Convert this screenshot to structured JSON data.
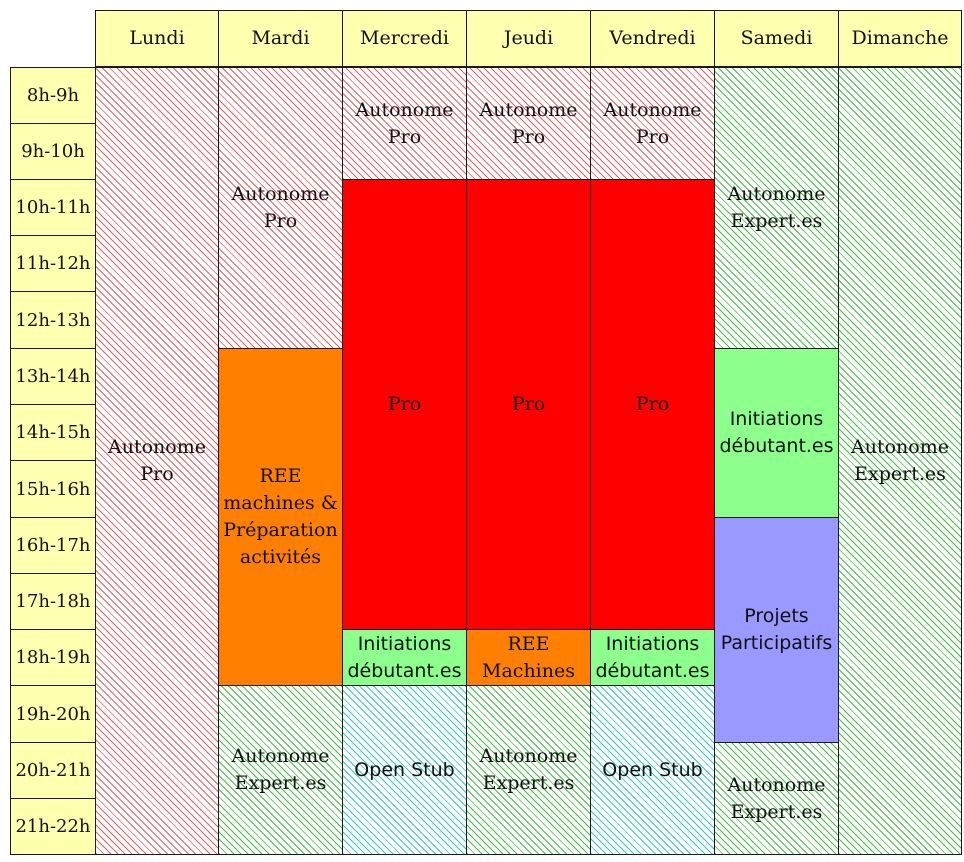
{
  "days": [
    "Lundi",
    "Mardi",
    "Mercredi",
    "Jeudi",
    "Vendredi",
    "Samedi",
    "Dimanche"
  ],
  "time_slots": [
    "8h-9h",
    "9h-10h",
    "10h-11h",
    "11h-12h",
    "12h-13h",
    "13h-14h",
    "14h-15h",
    "15h-16h",
    "16h-17h",
    "17h-18h",
    "18h-19h",
    "19h-20h",
    "20h-21h",
    "21h-22h"
  ],
  "blocks": {
    "lundi_autonome_pro": "Autonome\nPro",
    "mardi_autonome_pro": "Autonome\nPro",
    "mardi_ree": "REE\nmachines &\nPréparation\nactivités",
    "mardi_autonome_expert": "Autonome\nExpert.es",
    "mercredi_autonome_pro": "Autonome\nPro",
    "mercredi_pro": "Pro",
    "mercredi_initiations": "Initiations\ndébutant.es",
    "mercredi_open_stub": "Open Stub",
    "jeudi_autonome_pro": "Autonome\nPro",
    "jeudi_pro": "Pro",
    "jeudi_ree": "REE\nMachines",
    "jeudi_autonome_expert": "Autonome\nExpert.es",
    "vendredi_autonome_pro": "Autonome\nPro",
    "vendredi_pro": "Pro",
    "vendredi_initiations": "Initiations\ndébutant.es",
    "vendredi_open_stub": "Open Stub",
    "samedi_autonome_expert_am": "Autonome\nExpert.es",
    "samedi_initiations": "Initiations\ndébutant.es",
    "samedi_projets": "Projets\nParticipatifs",
    "samedi_autonome_expert_pm": "Autonome\nExpert.es",
    "dimanche_autonome_expert": "Autonome\nExpert.es"
  },
  "colors": {
    "header_bg": "#ffffb0",
    "autonome_pro_hatch": "#e06060",
    "autonome_expert_hatch": "#40c040",
    "open_stub_hatch": "#30c8c8",
    "pro": "#ff0000",
    "ree": "#ff8000",
    "initiations": "#8cff8c",
    "projets": "#9999ff"
  }
}
